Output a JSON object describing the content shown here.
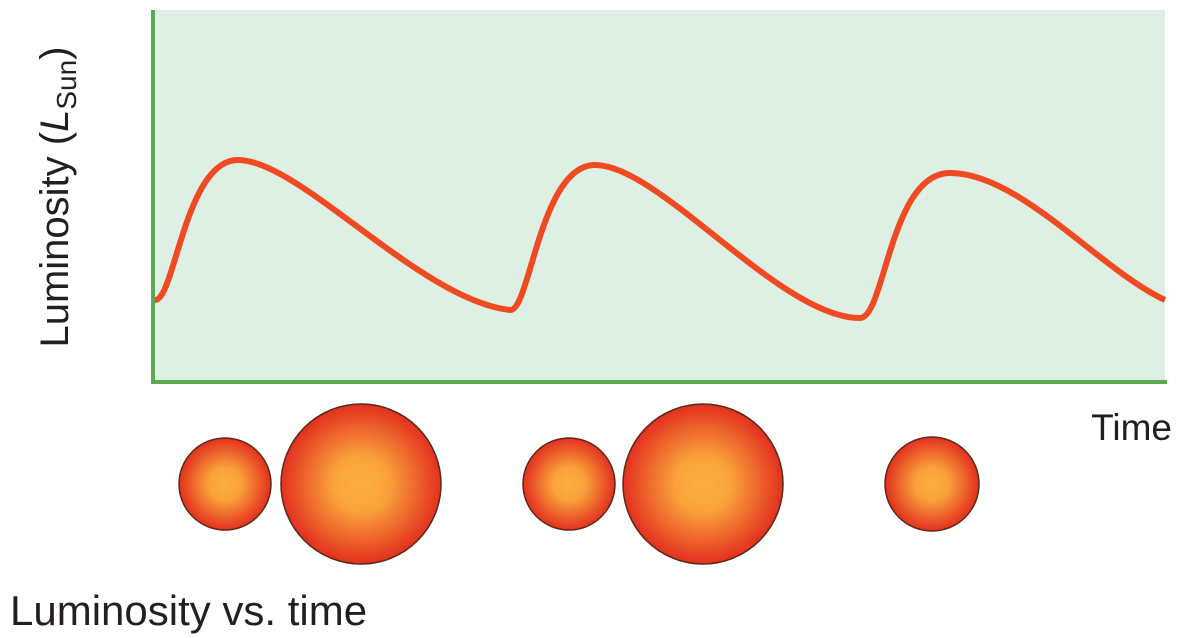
{
  "y_axis": {
    "label_prefix": "Luminosity (",
    "symbol": "L",
    "subscript": "Sun",
    "label_suffix": ")"
  },
  "x_axis": {
    "label": "Time"
  },
  "caption": "Luminosity vs. time"
}
